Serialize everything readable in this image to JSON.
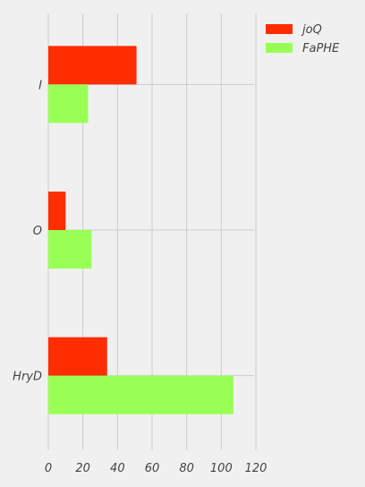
{
  "chart_data": {
    "type": "bar",
    "orientation": "horizontal",
    "categories": [
      "I",
      "O",
      "HryD"
    ],
    "series": [
      {
        "name": "joQ",
        "color": "#ff2d00",
        "values": [
          51,
          10,
          34
        ]
      },
      {
        "name": "FaPHE",
        "color": "#99ff55",
        "values": [
          23,
          25,
          107
        ]
      }
    ],
    "xlim": [
      0,
      120
    ],
    "xticks": [
      0,
      20,
      40,
      60,
      80,
      100,
      120
    ],
    "grid": true,
    "legend_position": "top-right",
    "title": "",
    "xlabel": "",
    "ylabel": ""
  }
}
